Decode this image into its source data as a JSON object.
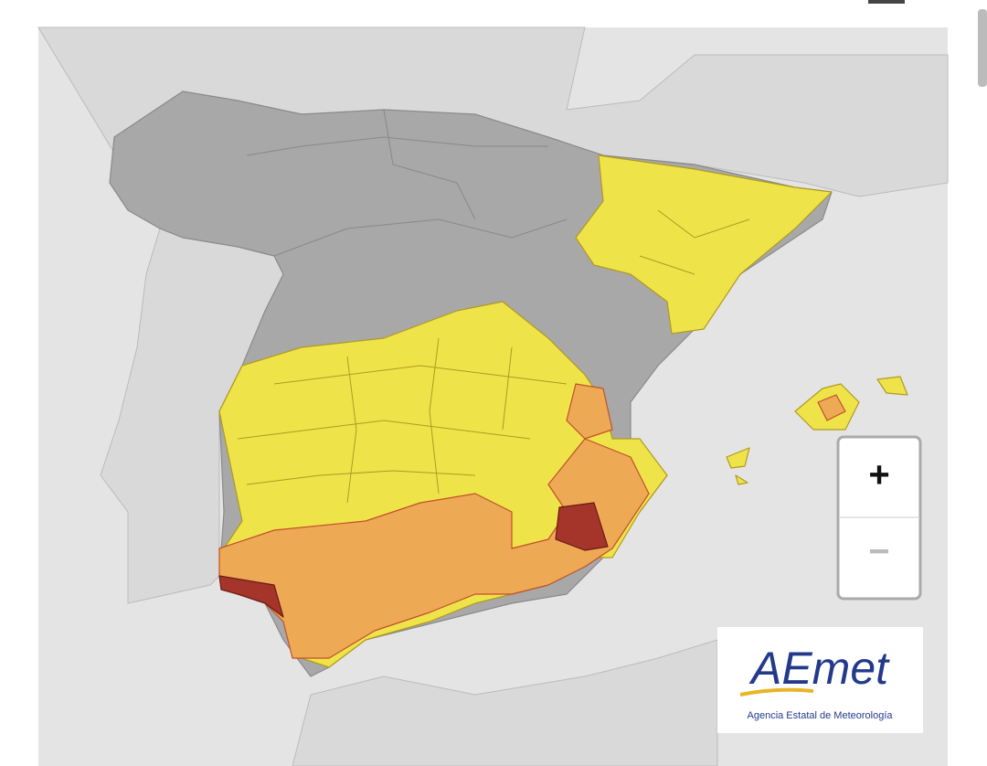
{
  "zoom_control": {
    "zoom_in": "+",
    "zoom_out": "−"
  },
  "logo": {
    "name": "AEmet",
    "subtitle": "Agencia Estatal de Meteorología"
  }
}
